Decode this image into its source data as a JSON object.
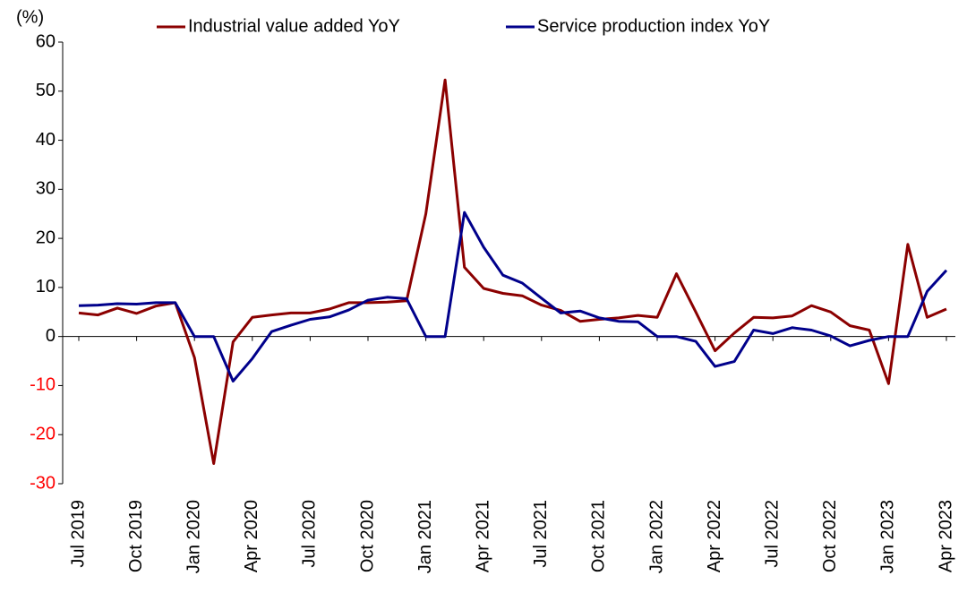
{
  "chart_data": {
    "type": "line",
    "y_unit": "(%)",
    "categories": [
      "Jul 2019",
      null,
      null,
      "Oct 2019",
      null,
      null,
      "Jan 2020",
      null,
      null,
      "Apr 2020",
      null,
      null,
      "Jul 2020",
      null,
      null,
      "Oct 2020",
      null,
      null,
      "Jan 2021",
      null,
      null,
      "Apr 2021",
      null,
      null,
      "Jul 2021",
      null,
      null,
      "Oct 2021",
      null,
      null,
      "Jan 2022",
      null,
      null,
      "Apr 2022",
      null,
      null,
      "Jul 2022",
      null,
      null,
      "Oct 2022",
      null,
      null,
      "Jan 2023",
      null,
      null,
      "Apr 2023"
    ],
    "series": [
      {
        "name": "Industrial value added YoY",
        "color": "#8b0000",
        "values": [
          4.8,
          4.4,
          5.8,
          4.7,
          6.2,
          6.9,
          -4.3,
          -25.9,
          -1.1,
          3.9,
          4.4,
          4.8,
          4.8,
          5.6,
          6.9,
          6.9,
          7.0,
          7.3,
          25.0,
          52.3,
          14.1,
          9.8,
          8.8,
          8.3,
          6.4,
          5.3,
          3.1,
          3.5,
          3.8,
          4.3,
          3.9,
          12.8,
          5.0,
          -2.9,
          0.7,
          3.9,
          3.8,
          4.2,
          6.3,
          5.0,
          2.2,
          1.3,
          -9.6,
          18.8,
          3.9,
          5.6
        ]
      },
      {
        "name": "Service production index YoY",
        "color": "#00008b",
        "values": [
          6.3,
          6.4,
          6.7,
          6.6,
          6.9,
          6.9,
          0,
          0,
          -9.1,
          -4.5,
          1.0,
          2.3,
          3.5,
          4.0,
          5.4,
          7.4,
          8.0,
          7.7,
          0,
          0,
          25.3,
          18.2,
          12.5,
          10.9,
          7.8,
          4.8,
          5.2,
          3.8,
          3.1,
          3.0,
          0,
          0,
          -1.0,
          -6.1,
          -5.1,
          1.3,
          0.6,
          1.8,
          1.3,
          0.1,
          -1.9,
          -0.8,
          0,
          0,
          9.2,
          13.5
        ]
      }
    ],
    "ylim": [
      -30,
      60
    ],
    "yticks": [
      -30,
      -20,
      -10,
      0,
      10,
      20,
      30,
      40,
      50,
      60
    ],
    "negative_tick_color": "#ff0000"
  }
}
